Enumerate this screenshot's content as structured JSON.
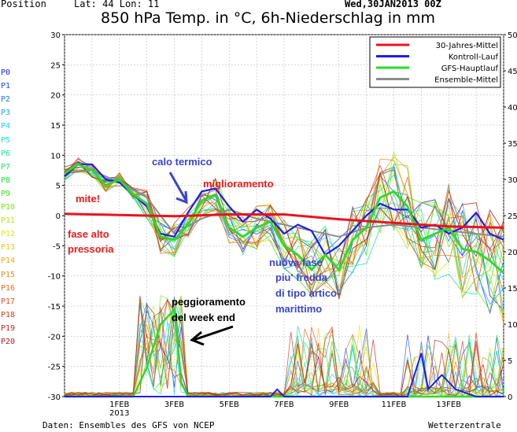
{
  "header": {
    "position_label": "Position",
    "lat_lon": "Lat: 44  Lon: 11",
    "title": "850 hPa Temp. in °C, 6h-Niederschlag in mm",
    "date": "Wed,30JAN2013  00Z"
  },
  "footer": {
    "source": "Daten: Ensembles des GFS von NCEP",
    "credit": "Wetterzentrale"
  },
  "members": [
    {
      "label": "P0",
      "color": "#1e1ef0"
    },
    {
      "label": "P1",
      "color": "#1e4bf0"
    },
    {
      "label": "P2",
      "color": "#1e78f0"
    },
    {
      "label": "P3",
      "color": "#1ea5f0"
    },
    {
      "label": "P4",
      "color": "#1ed2f0"
    },
    {
      "label": "P5",
      "color": "#1ee6d2"
    },
    {
      "label": "P6",
      "color": "#1ee6a0"
    },
    {
      "label": "P7",
      "color": "#1ee66e"
    },
    {
      "label": "P8",
      "color": "#1ee63c"
    },
    {
      "label": "P9",
      "color": "#3ce61e"
    },
    {
      "label": "P10",
      "color": "#78e61e"
    },
    {
      "label": "P11",
      "color": "#b4e61e"
    },
    {
      "label": "P12",
      "color": "#e6e61e"
    },
    {
      "label": "P13",
      "color": "#e6c81e"
    },
    {
      "label": "P14",
      "color": "#e6aa1e"
    },
    {
      "label": "P15",
      "color": "#e68c1e"
    },
    {
      "label": "P16",
      "color": "#e66e1e"
    },
    {
      "label": "P17",
      "color": "#e6501e"
    },
    {
      "label": "P18",
      "color": "#d23c1e"
    },
    {
      "label": "P19",
      "color": "#be281e"
    },
    {
      "label": "P20",
      "color": "#aa1e1e"
    }
  ],
  "legend": [
    {
      "label": "30-Jahres-Mittel",
      "color": "#e8141e"
    },
    {
      "label": "Kontroll-Lauf",
      "color": "#1e1ee6"
    },
    {
      "label": "GFS-Hauptlauf",
      "color": "#28dc28"
    },
    {
      "label": "Ensemble-Mittel",
      "color": "#8c8c8c"
    }
  ],
  "annotations": [
    {
      "text": "calo termico",
      "color": "#3c46c8"
    },
    {
      "text": "miglioramento",
      "color": "#e61e1e"
    },
    {
      "text": "mite!",
      "color": "#e61e1e"
    },
    {
      "text": "fase alto",
      "color": "#e61e1e"
    },
    {
      "text": "pressoria",
      "color": "#e61e1e"
    },
    {
      "text": "nuova fase",
      "color": "#3c46c8"
    },
    {
      "text": "piu' fredda",
      "color": "#3c46c8"
    },
    {
      "text": "di tipo artico-",
      "color": "#3c46c8"
    },
    {
      "text": "marittimo",
      "color": "#3c46c8"
    },
    {
      "text": "peggioramento",
      "color": "#000000"
    },
    {
      "text": "del week end",
      "color": "#000000"
    }
  ],
  "chart_data": {
    "type": "line",
    "title": "850 hPa Temp. in °C, 6h-Niederschlag in mm",
    "x_labels": [
      "1FEB\n2013",
      "3FEB",
      "5FEB",
      "7FEB",
      "9FEB",
      "11FEB",
      "13FEB"
    ],
    "x_label_hours": [
      48,
      96,
      144,
      192,
      240,
      288,
      336
    ],
    "x_range_hours": [
      0,
      384
    ],
    "ylim_left": [
      -30,
      30
    ],
    "yticks_left": [
      30,
      25,
      20,
      15,
      10,
      5,
      0,
      -5,
      -10,
      -15,
      -20,
      -25,
      -30
    ],
    "ylim_right": [
      0,
      50
    ],
    "yticks_right": [
      50,
      45,
      40,
      35,
      30,
      25,
      20,
      15,
      10,
      5,
      0
    ],
    "grid": true,
    "legend_position": "top-right",
    "series": [
      {
        "name": "30-Jahres-Mittel",
        "x": [
          0,
          48,
          96,
          144,
          192,
          240,
          288,
          336,
          384
        ],
        "y": [
          0.3,
          0.1,
          -0.1,
          0.2,
          0.2,
          -0.6,
          -1.2,
          -1.8,
          -2.0
        ]
      },
      {
        "name": "Kontroll-Lauf",
        "x": [
          0,
          12,
          24,
          36,
          48,
          60,
          72,
          84,
          96,
          108,
          120,
          132,
          144,
          156,
          168,
          180,
          192,
          204,
          216,
          228,
          240,
          252,
          264,
          276,
          288,
          300,
          312,
          324,
          336,
          348,
          360,
          372,
          384
        ],
        "y": [
          6.5,
          8.5,
          8.5,
          6,
          5.5,
          3.5,
          1.5,
          -3,
          -3.5,
          0.5,
          4,
          4.5,
          1.5,
          -1,
          1,
          -0.5,
          -3,
          -1.5,
          -2.5,
          -6.5,
          -5,
          -2.5,
          0,
          2,
          1,
          1,
          -2,
          -1.5,
          -3,
          -2,
          0.5,
          -3,
          -4
        ]
      },
      {
        "name": "GFS-Hauptlauf",
        "x": [
          0,
          12,
          24,
          36,
          48,
          60,
          72,
          84,
          96,
          108,
          120,
          132,
          144,
          156,
          168,
          180,
          192,
          204,
          216,
          228,
          240,
          252,
          264,
          276,
          288,
          300,
          312,
          324,
          336,
          348,
          360,
          372,
          384
        ],
        "y": [
          7,
          8.5,
          7.5,
          5,
          6,
          3.5,
          2,
          -3.5,
          -4,
          -1.5,
          2.5,
          3.5,
          -2,
          -3.5,
          -2,
          -1,
          -5,
          -6.5,
          -9,
          -6.5,
          -9,
          -4,
          -2,
          3,
          4,
          1.5,
          -4,
          -3,
          -2,
          -5.5,
          -6,
          -7.5,
          -9.5
        ]
      },
      {
        "name": "Ensemble-Mittel",
        "x": [
          0,
          24,
          48,
          72,
          96,
          120,
          144,
          168,
          192,
          216,
          240,
          264,
          288,
          312,
          336,
          360,
          384
        ],
        "y": [
          7,
          7.5,
          5.5,
          3,
          -3,
          -0.5,
          1,
          -0.5,
          -1.5,
          -2.5,
          -3.5,
          -2,
          -1.5,
          -2,
          -2.5,
          -3,
          -3.5
        ]
      }
    ]
  }
}
